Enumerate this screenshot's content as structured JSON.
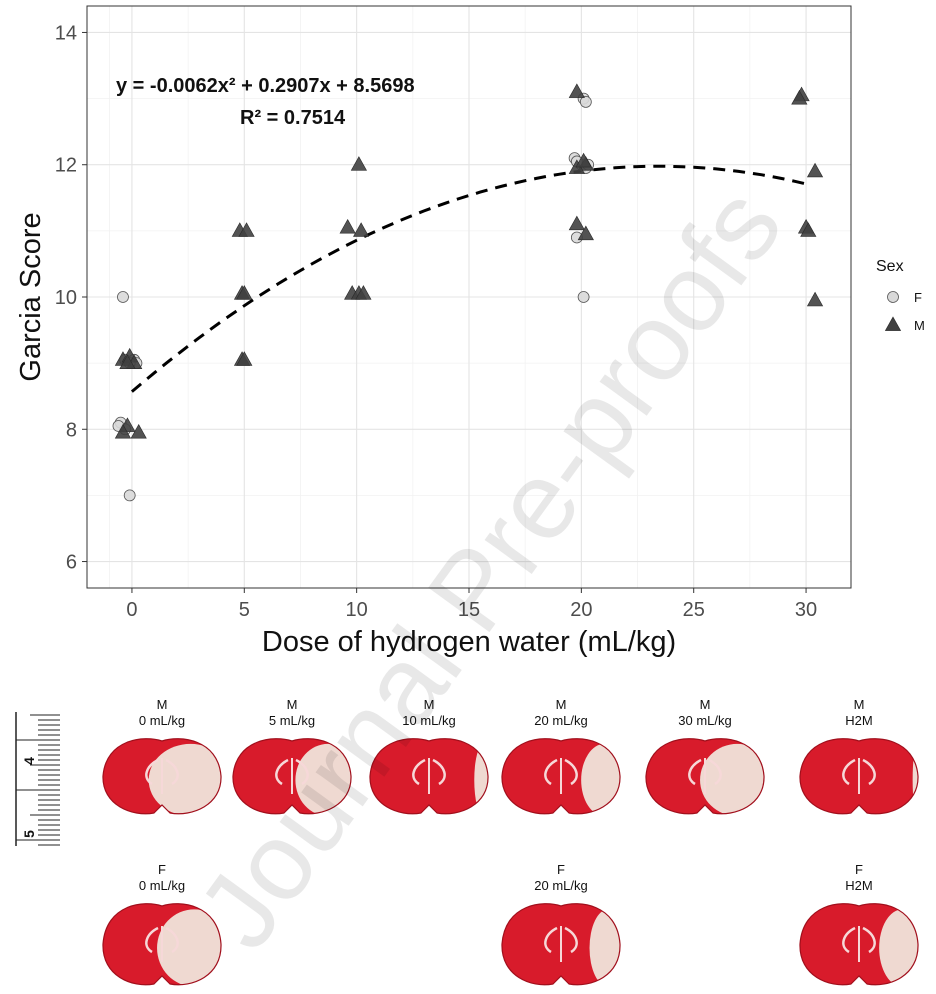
{
  "chart_data": {
    "type": "scatter",
    "xlabel": "Dose of hydrogen water (mL/kg)",
    "ylabel": "Garcia Score",
    "xlim": [
      -2,
      32
    ],
    "ylim": [
      5.6,
      14.4
    ],
    "xticks": [
      0,
      5,
      10,
      15,
      20,
      25,
      30
    ],
    "yticks": [
      6,
      8,
      10,
      12,
      14
    ],
    "grid": true,
    "legend": {
      "title": "Sex",
      "placement": "right",
      "entries": [
        "F",
        "M"
      ]
    },
    "series": [
      {
        "name": "F",
        "marker": "circle",
        "color": "#d9d9d9",
        "points": [
          [
            -0.4,
            10
          ],
          [
            -0.3,
            9.05
          ],
          [
            0.1,
            9.05
          ],
          [
            0.2,
            9.0
          ],
          [
            -0.1,
            9.0
          ],
          [
            -0.5,
            8.1
          ],
          [
            -0.3,
            8.0
          ],
          [
            -0.6,
            8.05
          ],
          [
            -0.1,
            7.0
          ],
          [
            19.7,
            12.1
          ],
          [
            20.0,
            12.0
          ],
          [
            20.2,
            11.95
          ],
          [
            19.8,
            12.05
          ],
          [
            20.3,
            12.0
          ],
          [
            20.1,
            13.0
          ],
          [
            20.2,
            12.95
          ],
          [
            19.8,
            10.9
          ],
          [
            20.1,
            10.0
          ]
        ]
      },
      {
        "name": "M",
        "marker": "triangle",
        "color": "#404040",
        "points": [
          [
            -0.4,
            9.05
          ],
          [
            -0.1,
            9.1
          ],
          [
            0.1,
            9.0
          ],
          [
            -0.2,
            9.0
          ],
          [
            -0.2,
            8.05
          ],
          [
            0.3,
            7.95
          ],
          [
            -0.4,
            7.95
          ],
          [
            4.8,
            11.0
          ],
          [
            5.1,
            11.0
          ],
          [
            4.9,
            10.05
          ],
          [
            5.0,
            10.05
          ],
          [
            4.9,
            9.05
          ],
          [
            5.0,
            9.05
          ],
          [
            10.1,
            12.0
          ],
          [
            9.6,
            11.05
          ],
          [
            10.2,
            11.0
          ],
          [
            9.8,
            10.05
          ],
          [
            10.1,
            10.05
          ],
          [
            10.3,
            10.05
          ],
          [
            19.8,
            13.1
          ],
          [
            20.2,
            12.0
          ],
          [
            19.8,
            11.95
          ],
          [
            20.1,
            12.05
          ],
          [
            19.8,
            11.1
          ],
          [
            20.2,
            10.95
          ],
          [
            29.8,
            13.05
          ],
          [
            29.7,
            13.0
          ],
          [
            30.4,
            11.9
          ],
          [
            30.0,
            11.05
          ],
          [
            30.1,
            11.0
          ],
          [
            30.4,
            9.95
          ]
        ]
      }
    ],
    "fit": {
      "type": "quadratic",
      "coefficients": {
        "a": -0.0062,
        "b": 0.2907,
        "c": 8.5698
      },
      "x_range": [
        0,
        30
      ],
      "equation_text": "y = -0.0062x² + 0.2907x + 8.5698",
      "r2_text": "R² = 0.7514"
    }
  },
  "watermark": "Journal Pre-proofs",
  "ruler": {
    "labels": [
      "4",
      "5"
    ]
  },
  "brain_panels": [
    {
      "row": 1,
      "col": 0,
      "sex": "M",
      "dose": "0 mL/kg",
      "infarct": 0.45
    },
    {
      "row": 1,
      "col": 1,
      "sex": "M",
      "dose": "5 mL/kg",
      "infarct": 0.35
    },
    {
      "row": 1,
      "col": 2,
      "sex": "M",
      "dose": "10 mL/kg",
      "infarct": 0.1
    },
    {
      "row": 1,
      "col": 3,
      "sex": "M",
      "dose": "20 mL/kg",
      "infarct": 0.25
    },
    {
      "row": 1,
      "col": 4,
      "sex": "M",
      "dose": "30 mL/kg",
      "infarct": 0.4
    },
    {
      "row": 1,
      "col": 5,
      "sex": "M",
      "dose": "H2M",
      "infarct": 0.05
    },
    {
      "row": 2,
      "col": 0,
      "sex": "F",
      "dose": "0 mL/kg",
      "infarct": 0.4
    },
    {
      "row": 2,
      "col": 3,
      "sex": "F",
      "dose": "20 mL/kg",
      "infarct": 0.2
    },
    {
      "row": 2,
      "col": 5,
      "sex": "F",
      "dose": "H2M",
      "infarct": 0.25
    }
  ],
  "colors": {
    "tissue": "#d81b2b",
    "tissue_dark": "#a10f1c",
    "infarct": "#f1e9e0",
    "fit_line": "#000000"
  }
}
